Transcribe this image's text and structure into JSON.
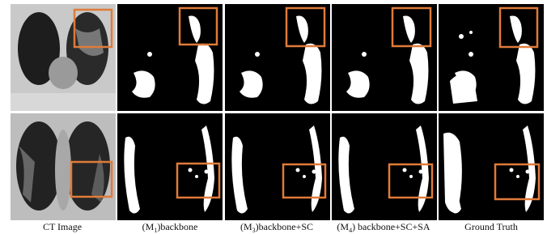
{
  "captions": [
    {
      "text": "CT Image"
    },
    {
      "prefix": "(M",
      "sub": "1",
      "rest": ")backbone"
    },
    {
      "prefix": "(M",
      "sub": "3",
      "rest": ")backbone+SC"
    },
    {
      "prefix": "(M",
      "sub": "4",
      "rest": ") backbone+SC+SA"
    },
    {
      "text": "Ground Truth"
    }
  ]
}
